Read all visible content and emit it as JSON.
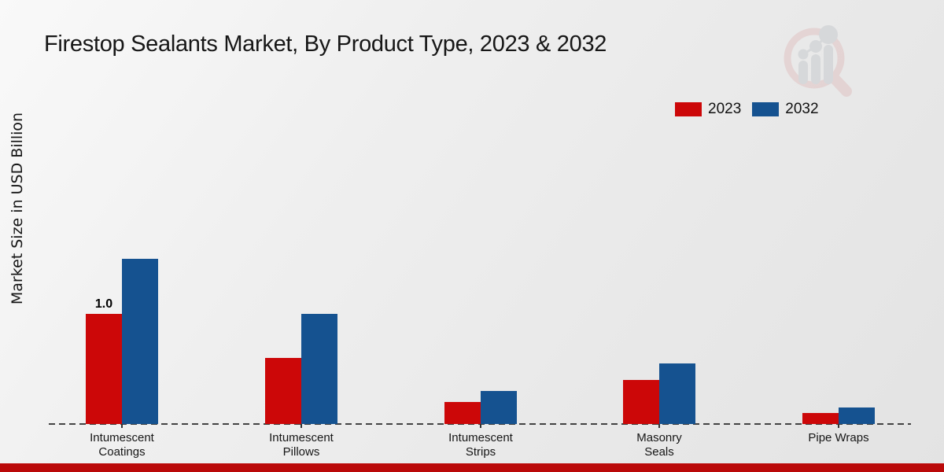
{
  "title": "Firestop Sealants Market, By Product Type, 2023 & 2032",
  "ylabel": "Market Size in USD Billion",
  "colors": {
    "red_2023": "#cc0708",
    "blue_2032": "#155290",
    "footer_bar": "#ba0909",
    "axis_line": "#2b2b2b"
  },
  "legend": [
    {
      "label": "2023",
      "color": "#cc0708"
    },
    {
      "label": "2032",
      "color": "#155290"
    }
  ],
  "watermark_icon": "market-research-magnifier-logo",
  "chart_data": {
    "type": "bar",
    "title": "Firestop Sealants Market, By Product Type, 2023 & 2032",
    "xlabel": "",
    "ylabel": "Market Size in USD Billion",
    "categories": [
      "Intumescent Coatings",
      "Intumescent Pillows",
      "Intumescent Strips",
      "Masonry Seals",
      "Pipe Wraps"
    ],
    "tick_labels": [
      [
        "Intumescent",
        "Coatings"
      ],
      [
        "Intumescent",
        "Pillows"
      ],
      [
        "Intumescent",
        "Strips"
      ],
      [
        "Masonry",
        "Seals"
      ],
      [
        "Pipe Wraps"
      ]
    ],
    "series": [
      {
        "name": "2023",
        "color": "#cc0708",
        "values": [
          1.0,
          0.6,
          0.2,
          0.4,
          0.1
        ]
      },
      {
        "name": "2032",
        "color": "#155290",
        "values": [
          1.5,
          1.0,
          0.3,
          0.55,
          0.15
        ]
      }
    ],
    "annotations": [
      {
        "series_index": 0,
        "category_index": 0,
        "text": "1.0"
      }
    ],
    "ylim": [
      0,
      1.6
    ],
    "grid": false,
    "y_ticks_visible": false,
    "baseline_style": "dashed",
    "legend_position": "upper-right"
  }
}
